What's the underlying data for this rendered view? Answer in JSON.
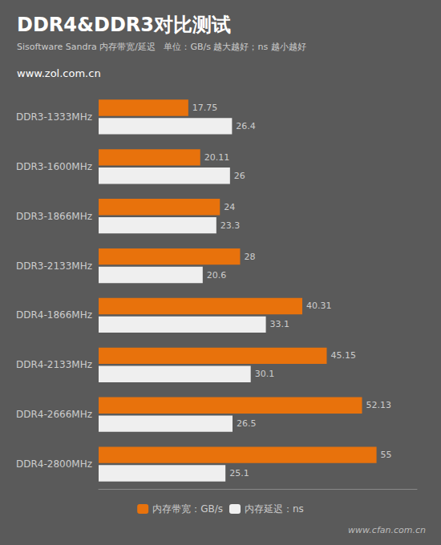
{
  "chart_data": {
    "type": "bar",
    "orientation": "horizontal",
    "title": "DDR4&DDR3对比测试",
    "subtitle": "Sisoftware Sandra 内存带宽/延迟   单位：GB/s 越大越好；ns 越小越好",
    "annotations": [
      "www.zol.com.cn",
      "www.cfan.com.cn"
    ],
    "categories": [
      "DDR3-1333MHz",
      "DDR3-1600MHz",
      "DDR3-1866MHz",
      "DDR3-2133MHz",
      "DDR4-1866MHz",
      "DDR4-2133MHz",
      "DDR4-2666MHz",
      "DDR4-2800MHz"
    ],
    "series": [
      {
        "name": "内存带宽：GB/s",
        "color": "#E8720C",
        "values": [
          17.75,
          20.11,
          24,
          28,
          40.31,
          45.15,
          52.13,
          55
        ]
      },
      {
        "name": "内存延迟：ns",
        "color": "#EFEFEF",
        "values": [
          26.4,
          26,
          23.3,
          20.6,
          33.1,
          30.1,
          26.5,
          25.1
        ]
      }
    ],
    "xlim": [
      0,
      63
    ],
    "grid": false,
    "legend": "bottom",
    "data_labels": true,
    "tick_labels": "y"
  }
}
